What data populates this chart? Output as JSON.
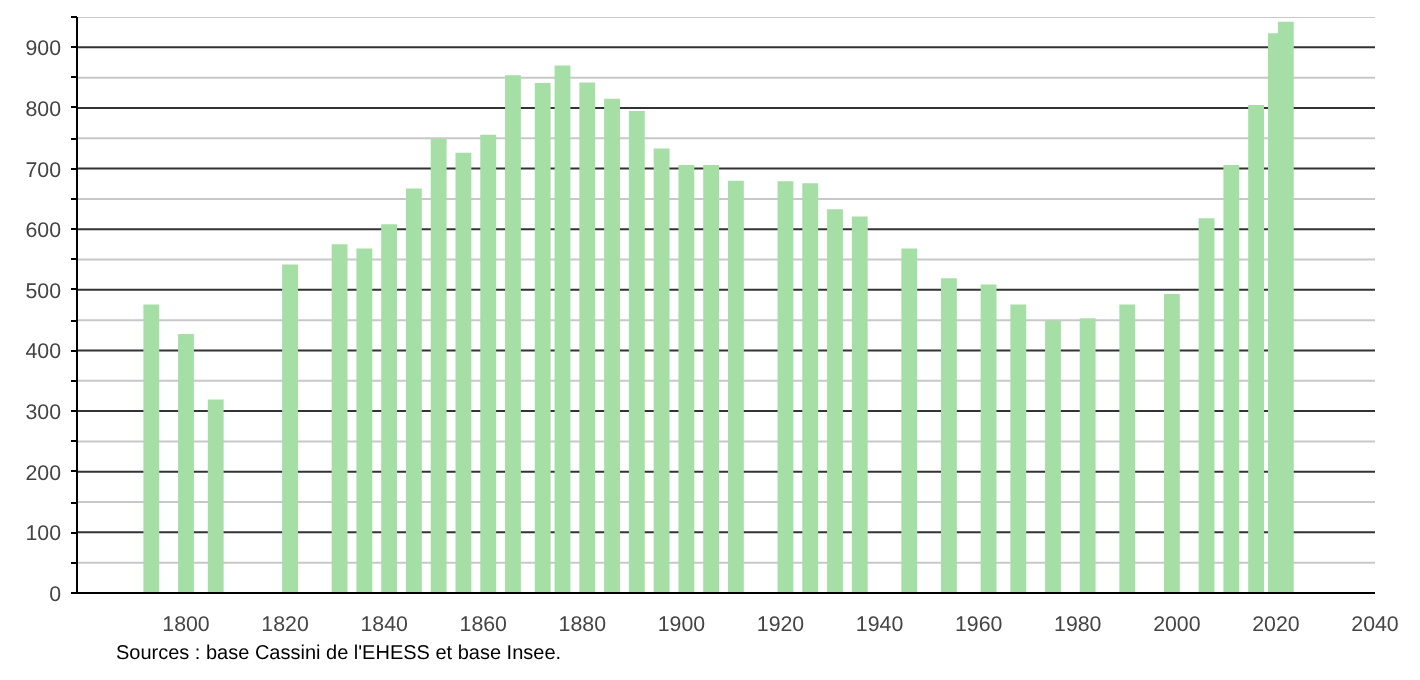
{
  "chart_data": {
    "type": "bar",
    "x": [
      1793,
      1800,
      1806,
      1821,
      1831,
      1836,
      1841,
      1846,
      1851,
      1856,
      1861,
      1866,
      1872,
      1876,
      1881,
      1886,
      1891,
      1896,
      1901,
      1906,
      1911,
      1921,
      1926,
      1931,
      1936,
      1946,
      1954,
      1962,
      1968,
      1975,
      1982,
      1990,
      1999,
      2006,
      2011,
      2016,
      2020,
      2022
    ],
    "values": [
      476,
      427,
      319,
      542,
      575,
      568,
      608,
      667,
      749,
      726,
      756,
      854,
      841,
      870,
      842,
      815,
      795,
      733,
      706,
      706,
      680,
      679,
      676,
      633,
      621,
      568,
      519,
      509,
      476,
      449,
      453,
      476,
      493,
      618,
      706,
      805,
      923,
      942
    ],
    "color": "#a6dfa6",
    "xlim": [
      1778,
      2040
    ],
    "xticks": [
      1800,
      1820,
      1840,
      1860,
      1880,
      1900,
      1920,
      1940,
      1960,
      1980,
      2000,
      2020,
      2040
    ],
    "ylim": [
      0,
      950
    ],
    "yticks": [
      0,
      {
        "value": 50,
        "label": null
      },
      100,
      {
        "value": 150,
        "label": null
      },
      200,
      {
        "value": 250,
        "label": null
      },
      300,
      {
        "value": 350,
        "label": null
      },
      400,
      {
        "value": 450,
        "label": null
      },
      500,
      {
        "value": 550,
        "label": null
      },
      600,
      {
        "value": 650,
        "label": null
      },
      700,
      {
        "value": 750,
        "label": null
      },
      800,
      {
        "value": 850,
        "label": null
      },
      900,
      {
        "value": 950,
        "label": null
      }
    ],
    "grid": "y",
    "annotations": [
      "Sources : base Cassini de l'EHESS et base Insee."
    ]
  }
}
